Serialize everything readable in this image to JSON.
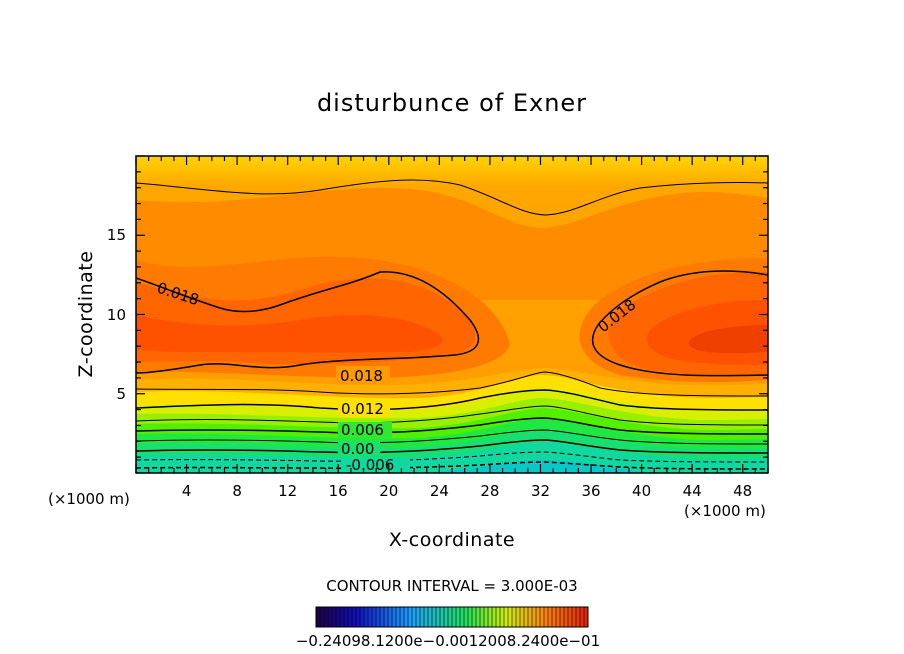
{
  "chart_data": {
    "type": "heatmap",
    "subtype": "filled-contour",
    "title": "disturbunce of Exner",
    "xlabel": "X-coordinate",
    "ylabel": "Z-coordinate",
    "x_unit": "(×1000 m)",
    "y_unit": "(×1000 m)",
    "xlim": [
      0,
      50
    ],
    "ylim": [
      0,
      20
    ],
    "x_ticks": [
      "4",
      "8",
      "12",
      "16",
      "20",
      "24",
      "28",
      "32",
      "36",
      "40",
      "44",
      "48"
    ],
    "y_ticks": [
      "5",
      "10",
      "15"
    ],
    "contour_interval_text": "CONTOUR INTERVAL = 3.000E-03",
    "contour_labels": [
      "0.018",
      "0.018",
      "0.018",
      "0.012",
      "0.006",
      "0.00",
      "-0.006"
    ],
    "colorbar_label": "−0.24098.1200e−0.0012008.2400e−01",
    "color_scale": [
      "#00b8d8",
      "#18e0a0",
      "#50f000",
      "#c8f000",
      "#fff000",
      "#ffd800",
      "#ffb000",
      "#ff9000",
      "#ff7000",
      "#ff5500",
      "#f03000"
    ],
    "field_description": "maximum ~0.021 near z 8 at x 2-20 and x 40-50; weaker near x 32; negative (~-0.009) near bottom at x 32",
    "annotations": []
  }
}
